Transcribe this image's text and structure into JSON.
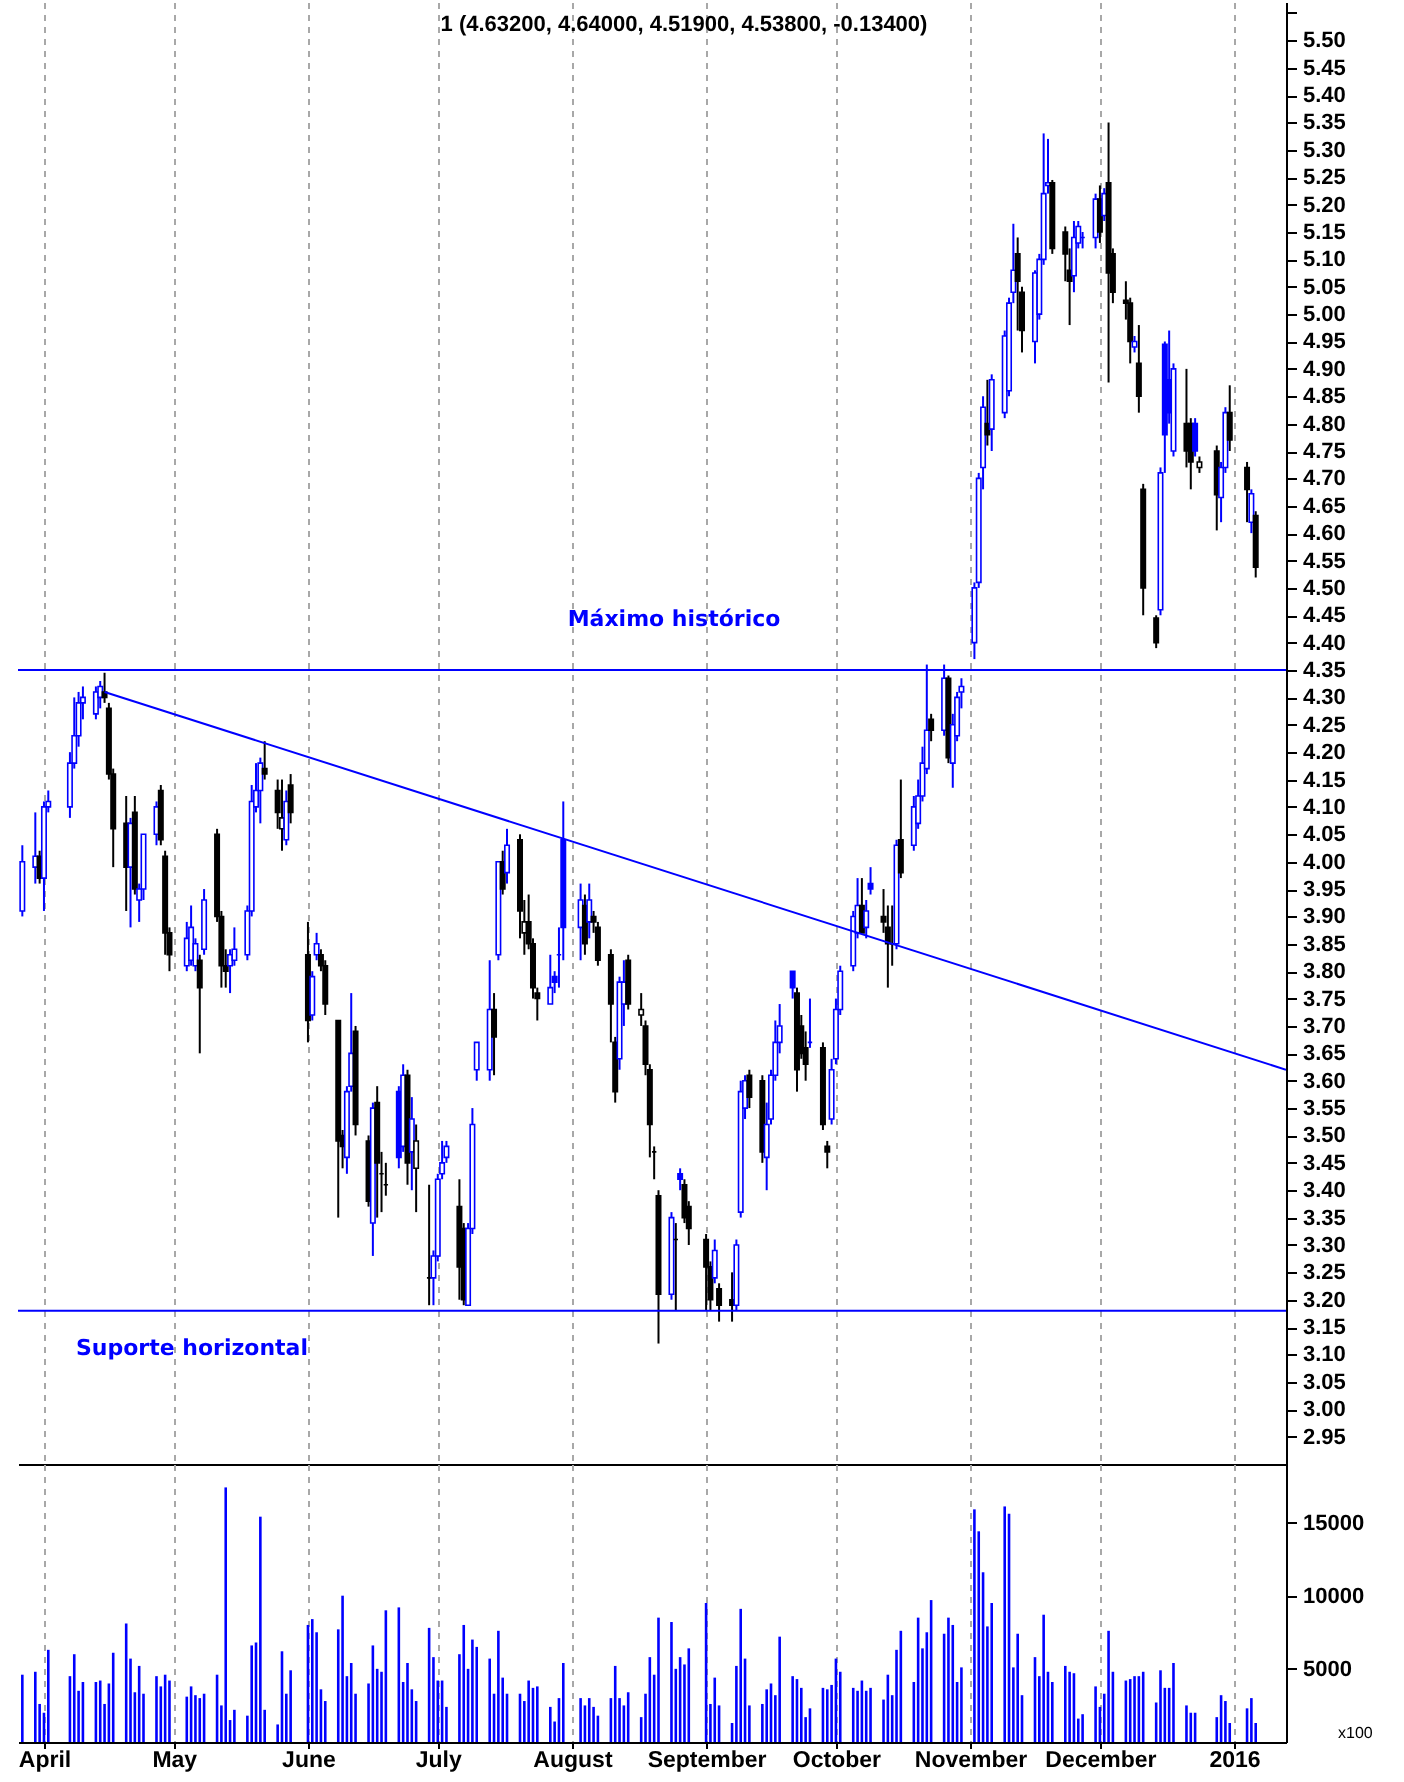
{
  "chart_data": [
    {
      "type": "candlestick",
      "title": "1 (4.63200, 4.64000, 4.51900, 4.53800, -0.13400)",
      "x": [
        "2015-03-27",
        "2015-03-30",
        "2015-03-31",
        "2015-04-01",
        "2015-04-02",
        "2015-04-07",
        "2015-04-08",
        "2015-04-09",
        "2015-04-10",
        "2015-04-13",
        "2015-04-14",
        "2015-04-15",
        "2015-04-16",
        "2015-04-17",
        "2015-04-20",
        "2015-04-21",
        "2015-04-22",
        "2015-04-23",
        "2015-04-24",
        "2015-04-27",
        "2015-04-28",
        "2015-04-29",
        "2015-04-30",
        "2015-05-04",
        "2015-05-05",
        "2015-05-06",
        "2015-05-07",
        "2015-05-08",
        "2015-05-11",
        "2015-05-12",
        "2015-05-13",
        "2015-05-14",
        "2015-05-15",
        "2015-05-18",
        "2015-05-19",
        "2015-05-20",
        "2015-05-21",
        "2015-05-22",
        "2015-05-25",
        "2015-05-26",
        "2015-05-27",
        "2015-05-28",
        "2015-06-01",
        "2015-06-02",
        "2015-06-03",
        "2015-06-04",
        "2015-06-05",
        "2015-06-08",
        "2015-06-09",
        "2015-06-10",
        "2015-06-11",
        "2015-06-12",
        "2015-06-15",
        "2015-06-16",
        "2015-06-17",
        "2015-06-18",
        "2015-06-19",
        "2015-06-22",
        "2015-06-23",
        "2015-06-24",
        "2015-06-25",
        "2015-06-26",
        "2015-06-29",
        "2015-06-30",
        "2015-07-01",
        "2015-07-02",
        "2015-07-03",
        "2015-07-06",
        "2015-07-07",
        "2015-07-08",
        "2015-07-09",
        "2015-07-10",
        "2015-07-13",
        "2015-07-14",
        "2015-07-15",
        "2015-07-16",
        "2015-07-17",
        "2015-07-20",
        "2015-07-21",
        "2015-07-22",
        "2015-07-23",
        "2015-07-24",
        "2015-07-27",
        "2015-07-28",
        "2015-07-29",
        "2015-07-30",
        "2015-08-03",
        "2015-08-04",
        "2015-08-05",
        "2015-08-06",
        "2015-08-07",
        "2015-08-10",
        "2015-08-11",
        "2015-08-12",
        "2015-08-13",
        "2015-08-14",
        "2015-08-17",
        "2015-08-18",
        "2015-08-19",
        "2015-08-20",
        "2015-08-21",
        "2015-08-24",
        "2015-08-25",
        "2015-08-26",
        "2015-08-27",
        "2015-08-28",
        "2015-09-01",
        "2015-09-02",
        "2015-09-03",
        "2015-09-04",
        "2015-09-07",
        "2015-09-08",
        "2015-09-09",
        "2015-09-10",
        "2015-09-11",
        "2015-09-14",
        "2015-09-15",
        "2015-09-16",
        "2015-09-17",
        "2015-09-18",
        "2015-09-21",
        "2015-09-22",
        "2015-09-23",
        "2015-09-24",
        "2015-09-25",
        "2015-09-28",
        "2015-09-29",
        "2015-09-30",
        "2015-10-01",
        "2015-10-02",
        "2015-10-05",
        "2015-10-06",
        "2015-10-07",
        "2015-10-08",
        "2015-10-09",
        "2015-10-12",
        "2015-10-13",
        "2015-10-14",
        "2015-10-15",
        "2015-10-16",
        "2015-10-19",
        "2015-10-20",
        "2015-10-21",
        "2015-10-22",
        "2015-10-23",
        "2015-10-26",
        "2015-10-27",
        "2015-10-28",
        "2015-10-29",
        "2015-10-30",
        "2015-11-02",
        "2015-11-03",
        "2015-11-04",
        "2015-11-05",
        "2015-11-06",
        "2015-11-09",
        "2015-11-10",
        "2015-11-11",
        "2015-11-12",
        "2015-11-13",
        "2015-11-16",
        "2015-11-17",
        "2015-11-18",
        "2015-11-19",
        "2015-11-20",
        "2015-11-23",
        "2015-11-24",
        "2015-11-25",
        "2015-11-26",
        "2015-11-27",
        "2015-11-30",
        "2015-12-01",
        "2015-12-02",
        "2015-12-03",
        "2015-12-04",
        "2015-12-07",
        "2015-12-08",
        "2015-12-09",
        "2015-12-10",
        "2015-12-11",
        "2015-12-14",
        "2015-12-15",
        "2015-12-16",
        "2015-12-17",
        "2015-12-18",
        "2015-12-21",
        "2015-12-22",
        "2015-12-23",
        "2015-12-24",
        "2015-12-28",
        "2015-12-29",
        "2015-12-30",
        "2015-12-31",
        "2016-01-04",
        "2016-01-05",
        "2016-01-06"
      ],
      "ohlc": [
        [
          3.91,
          4.03,
          3.9,
          4.0
        ],
        [
          3.99,
          4.09,
          3.96,
          4.01
        ],
        [
          4.01,
          4.02,
          3.96,
          3.97
        ],
        [
          3.97,
          4.11,
          3.91,
          4.1
        ],
        [
          4.1,
          4.13,
          4.09,
          4.11
        ],
        [
          4.1,
          4.2,
          4.08,
          4.18
        ],
        [
          4.18,
          4.3,
          4.17,
          4.23
        ],
        [
          4.23,
          4.31,
          4.21,
          4.29
        ],
        [
          4.29,
          4.32,
          4.26,
          4.3
        ],
        [
          4.27,
          4.32,
          4.26,
          4.31
        ],
        [
          4.3,
          4.33,
          4.28,
          4.32
        ],
        [
          4.31,
          4.345,
          4.29,
          4.3
        ],
        [
          4.28,
          4.29,
          4.15,
          4.16
        ],
        [
          4.16,
          4.17,
          3.99,
          4.06
        ],
        [
          4.07,
          4.12,
          3.91,
          3.99
        ],
        [
          3.99,
          4.08,
          3.88,
          4.07
        ],
        [
          4.09,
          4.12,
          3.94,
          3.95
        ],
        [
          3.93,
          3.96,
          3.89,
          3.95
        ],
        [
          3.95,
          4.05,
          3.93,
          4.05
        ],
        [
          4.05,
          4.11,
          4.03,
          4.1
        ],
        [
          4.13,
          4.14,
          4.03,
          4.04
        ],
        [
          4.01,
          4.02,
          3.83,
          3.87
        ],
        [
          3.87,
          3.88,
          3.8,
          3.83
        ],
        [
          3.81,
          3.89,
          3.8,
          3.86
        ],
        [
          3.82,
          3.92,
          3.81,
          3.88
        ],
        [
          3.81,
          3.86,
          3.8,
          3.85
        ],
        [
          3.82,
          3.83,
          3.65,
          3.77
        ],
        [
          3.84,
          3.95,
          3.83,
          3.93
        ],
        [
          4.05,
          4.06,
          3.89,
          3.9
        ],
        [
          3.9,
          3.91,
          3.77,
          3.81
        ],
        [
          3.81,
          3.84,
          3.77,
          3.8
        ],
        [
          3.81,
          3.84,
          3.76,
          3.83
        ],
        [
          3.82,
          3.88,
          3.81,
          3.84
        ],
        [
          3.83,
          3.92,
          3.82,
          3.91
        ],
        [
          3.91,
          4.14,
          3.9,
          4.11
        ],
        [
          4.1,
          4.18,
          4.09,
          4.13
        ],
        [
          4.13,
          4.19,
          4.07,
          4.18
        ],
        [
          4.17,
          4.22,
          4.15,
          4.16
        ],
        [
          4.13,
          4.15,
          4.06,
          4.09
        ],
        [
          4.06,
          4.15,
          4.02,
          4.08
        ],
        [
          4.04,
          4.13,
          4.03,
          4.11
        ],
        [
          4.14,
          4.16,
          4.07,
          4.09
        ],
        [
          3.83,
          3.89,
          3.67,
          3.71
        ],
        [
          3.72,
          3.8,
          3.71,
          3.79
        ],
        [
          3.83,
          3.87,
          3.82,
          3.85
        ],
        [
          3.83,
          3.84,
          3.8,
          3.81
        ],
        [
          3.81,
          3.82,
          3.72,
          3.74
        ],
        [
          3.71,
          3.71,
          3.35,
          3.49
        ],
        [
          3.5,
          3.51,
          3.44,
          3.48
        ],
        [
          3.46,
          3.59,
          3.43,
          3.58
        ],
        [
          3.59,
          3.76,
          3.58,
          3.65
        ],
        [
          3.69,
          3.7,
          3.5,
          3.52
        ],
        [
          3.49,
          3.5,
          3.37,
          3.38
        ],
        [
          3.34,
          3.56,
          3.28,
          3.55
        ],
        [
          3.56,
          3.59,
          3.35,
          3.45
        ],
        [
          3.43,
          3.47,
          3.36,
          3.43
        ],
        [
          3.41,
          3.45,
          3.39,
          3.41
        ],
        [
          3.58,
          3.59,
          3.44,
          3.46
        ],
        [
          3.48,
          3.63,
          3.47,
          3.61
        ],
        [
          3.61,
          3.62,
          3.41,
          3.45
        ],
        [
          3.47,
          3.57,
          3.4,
          3.53
        ],
        [
          3.44,
          3.52,
          3.36,
          3.49
        ],
        [
          3.24,
          3.41,
          3.19,
          3.24
        ],
        [
          3.24,
          3.29,
          3.19,
          3.28
        ],
        [
          3.28,
          3.43,
          3.27,
          3.42
        ],
        [
          3.43,
          3.49,
          3.42,
          3.45
        ],
        [
          3.46,
          3.49,
          3.45,
          3.48
        ],
        [
          3.37,
          3.42,
          3.2,
          3.26
        ],
        [
          3.33,
          3.34,
          3.19,
          3.2
        ],
        [
          3.19,
          3.34,
          3.19,
          3.33
        ],
        [
          3.33,
          3.55,
          3.32,
          3.52
        ],
        [
          3.62,
          3.67,
          3.6,
          3.67
        ],
        [
          3.62,
          3.82,
          3.6,
          3.73
        ],
        [
          3.73,
          3.76,
          3.61,
          3.68
        ],
        [
          3.83,
          4.0,
          3.82,
          4.0
        ],
        [
          4.0,
          4.02,
          3.94,
          3.95
        ],
        [
          3.98,
          4.06,
          3.96,
          4.03
        ],
        [
          4.04,
          4.05,
          3.86,
          3.91
        ],
        [
          3.87,
          3.93,
          3.83,
          3.89
        ],
        [
          3.89,
          3.94,
          3.84,
          3.85
        ],
        [
          3.85,
          3.86,
          3.75,
          3.77
        ],
        [
          3.76,
          3.77,
          3.71,
          3.75
        ],
        [
          3.74,
          3.83,
          3.74,
          3.77
        ],
        [
          3.79,
          3.8,
          3.76,
          3.78
        ],
        [
          3.83,
          3.88,
          3.77,
          3.83
        ],
        [
          4.04,
          4.11,
          3.82,
          3.88
        ],
        [
          3.88,
          3.96,
          3.82,
          3.93
        ],
        [
          3.92,
          3.94,
          3.83,
          3.85
        ],
        [
          3.89,
          3.96,
          3.86,
          3.93
        ],
        [
          3.9,
          3.91,
          3.87,
          3.89
        ],
        [
          3.88,
          3.89,
          3.81,
          3.82
        ],
        [
          3.83,
          3.84,
          3.67,
          3.74
        ],
        [
          3.67,
          3.68,
          3.56,
          3.58
        ],
        [
          3.64,
          3.79,
          3.62,
          3.78
        ],
        [
          3.74,
          3.82,
          3.7,
          3.78
        ],
        [
          3.82,
          3.83,
          3.73,
          3.74
        ],
        [
          3.72,
          3.76,
          3.7,
          3.73
        ],
        [
          3.7,
          3.71,
          3.61,
          3.63
        ],
        [
          3.62,
          3.63,
          3.46,
          3.52
        ],
        [
          3.47,
          3.48,
          3.42,
          3.47
        ],
        [
          3.39,
          3.4,
          3.12,
          3.21
        ],
        [
          3.21,
          3.36,
          3.2,
          3.35
        ],
        [
          3.31,
          3.34,
          3.18,
          3.31
        ],
        [
          3.43,
          3.44,
          3.4,
          3.42
        ],
        [
          3.41,
          3.42,
          3.34,
          3.35
        ],
        [
          3.37,
          3.38,
          3.3,
          3.33
        ],
        [
          3.31,
          3.32,
          3.18,
          3.26
        ],
        [
          3.26,
          3.27,
          3.18,
          3.2
        ],
        [
          3.24,
          3.31,
          3.23,
          3.29
        ],
        [
          3.22,
          3.23,
          3.16,
          3.19
        ],
        [
          3.2,
          3.25,
          3.16,
          3.19
        ],
        [
          3.19,
          3.31,
          3.18,
          3.3
        ],
        [
          3.36,
          3.6,
          3.35,
          3.58
        ],
        [
          3.55,
          3.61,
          3.53,
          3.6
        ],
        [
          3.61,
          3.62,
          3.55,
          3.57
        ],
        [
          3.6,
          3.61,
          3.45,
          3.47
        ],
        [
          3.46,
          3.56,
          3.4,
          3.52
        ],
        [
          3.53,
          3.62,
          3.52,
          3.61
        ],
        [
          3.61,
          3.71,
          3.6,
          3.67
        ],
        [
          3.67,
          3.74,
          3.65,
          3.7
        ],
        [
          3.8,
          3.8,
          3.75,
          3.77
        ],
        [
          3.76,
          3.77,
          3.58,
          3.62
        ],
        [
          3.7,
          3.72,
          3.64,
          3.65
        ],
        [
          3.66,
          3.69,
          3.6,
          3.63
        ],
        [
          3.67,
          3.75,
          3.66,
          3.67
        ],
        [
          3.66,
          3.67,
          3.51,
          3.52
        ],
        [
          3.48,
          3.49,
          3.44,
          3.47
        ],
        [
          3.53,
          3.64,
          3.52,
          3.62
        ],
        [
          3.64,
          3.75,
          3.63,
          3.73
        ],
        [
          3.73,
          3.81,
          3.72,
          3.8
        ],
        [
          3.81,
          3.91,
          3.8,
          3.9
        ],
        [
          3.87,
          3.97,
          3.86,
          3.92
        ],
        [
          3.92,
          3.97,
          3.87,
          3.87
        ],
        [
          3.88,
          3.93,
          3.86,
          3.91
        ],
        [
          3.96,
          3.99,
          3.94,
          3.95
        ],
        [
          3.9,
          3.95,
          3.87,
          3.89
        ],
        [
          3.88,
          3.92,
          3.77,
          3.85
        ],
        [
          3.85,
          3.92,
          3.81,
          3.85
        ],
        [
          3.85,
          4.04,
          3.84,
          4.03
        ],
        [
          4.04,
          4.15,
          3.97,
          3.98
        ],
        [
          4.03,
          4.12,
          4.02,
          4.1
        ],
        [
          4.07,
          4.15,
          4.06,
          4.12
        ],
        [
          4.12,
          4.21,
          4.11,
          4.18
        ],
        [
          4.17,
          4.36,
          4.16,
          4.24
        ],
        [
          4.26,
          4.27,
          4.22,
          4.24
        ],
        [
          4.24,
          4.36,
          4.23,
          4.335
        ],
        [
          4.335,
          4.34,
          4.18,
          4.19
        ],
        [
          4.18,
          4.27,
          4.135,
          4.25
        ],
        [
          4.23,
          4.31,
          4.22,
          4.3
        ],
        [
          4.31,
          4.335,
          4.28,
          4.32
        ],
        [
          4.4,
          4.51,
          4.37,
          4.5
        ],
        [
          4.51,
          4.71,
          4.5,
          4.7
        ],
        [
          4.72,
          4.85,
          4.68,
          4.83
        ],
        [
          4.8,
          4.88,
          4.76,
          4.78
        ],
        [
          4.79,
          4.89,
          4.75,
          4.88
        ],
        [
          4.82,
          4.97,
          4.81,
          4.96
        ],
        [
          4.86,
          5.03,
          4.85,
          5.02
        ],
        [
          5.04,
          5.165,
          5.02,
          5.08
        ],
        [
          5.11,
          5.14,
          4.97,
          5.06
        ],
        [
          5.04,
          5.05,
          4.93,
          4.97
        ],
        [
          4.95,
          5.08,
          4.91,
          5.075
        ],
        [
          5.0,
          5.11,
          4.99,
          5.1
        ],
        [
          5.1,
          5.33,
          5.09,
          5.22
        ],
        [
          5.235,
          5.32,
          5.22,
          5.24
        ],
        [
          5.24,
          5.245,
          5.11,
          5.12
        ],
        [
          5.15,
          5.16,
          5.06,
          5.11
        ],
        [
          5.08,
          5.12,
          4.98,
          5.06
        ],
        [
          5.07,
          5.17,
          5.04,
          5.14
        ],
        [
          5.13,
          5.17,
          5.12,
          5.16
        ],
        [
          5.14,
          5.15,
          5.12,
          5.14
        ],
        [
          5.14,
          5.22,
          5.12,
          5.21
        ],
        [
          5.21,
          5.235,
          5.13,
          5.15
        ],
        [
          5.18,
          5.23,
          5.17,
          5.22
        ],
        [
          5.24,
          5.35,
          4.875,
          5.075
        ],
        [
          5.11,
          5.12,
          5.02,
          5.04
        ],
        [
          5.025,
          5.06,
          4.99,
          5.02
        ],
        [
          5.02,
          5.03,
          4.91,
          4.95
        ],
        [
          4.94,
          4.96,
          4.93,
          4.95
        ],
        [
          4.91,
          4.98,
          4.82,
          4.85
        ],
        [
          4.68,
          4.69,
          4.45,
          4.5
        ],
        [
          4.445,
          4.45,
          4.39,
          4.4
        ],
        [
          4.46,
          4.72,
          4.45,
          4.71
        ],
        [
          4.945,
          4.95,
          4.71,
          4.78
        ],
        [
          4.88,
          4.97,
          4.8,
          4.82
        ],
        [
          4.75,
          4.91,
          4.74,
          4.9
        ],
        [
          4.8,
          4.9,
          4.72,
          4.75
        ],
        [
          4.8,
          4.81,
          4.68,
          4.73
        ],
        [
          4.8,
          4.81,
          4.74,
          4.75
        ],
        [
          4.72,
          4.74,
          4.71,
          4.73
        ],
        [
          4.75,
          4.76,
          4.605,
          4.67
        ],
        [
          4.665,
          4.73,
          4.62,
          4.72
        ],
        [
          4.72,
          4.83,
          4.71,
          4.82
        ],
        [
          4.82,
          4.87,
          4.75,
          4.77
        ],
        [
          4.72,
          4.73,
          4.62,
          4.68
        ],
        [
          4.62,
          4.68,
          4.6,
          4.672
        ],
        [
          4.632,
          4.64,
          4.519,
          4.538
        ]
      ],
      "colors": [
        "#0000ff",
        "#0000ff",
        "#000000",
        "#0000ff",
        "#0000ff",
        "#0000ff",
        "#0000ff",
        "#0000ff",
        "#0000ff",
        "#0000ff",
        "#0000ff",
        "#000000",
        "#000000",
        "#000000",
        "#000000",
        "#0000ff",
        "#000000",
        "#0000ff",
        "#0000ff",
        "#0000ff",
        "#000000",
        "#000000",
        "#000000",
        "#0000ff",
        "#0000ff",
        "#0000ff",
        "#000000",
        "#0000ff",
        "#000000",
        "#000000",
        "#000000",
        "#0000ff",
        "#0000ff",
        "#0000ff",
        "#0000ff",
        "#0000ff",
        "#0000ff",
        "#000000",
        "#000000",
        "#000000",
        "#0000ff",
        "#000000",
        "#000000",
        "#0000ff",
        "#0000ff",
        "#000000",
        "#000000",
        "#000000",
        "#000000",
        "#0000ff",
        "#0000ff",
        "#000000",
        "#000000",
        "#0000ff",
        "#000000",
        "#000000",
        "#000000",
        "#0000ff",
        "#0000ff",
        "#000000",
        "#0000ff",
        "#000000",
        "#000000",
        "#0000ff",
        "#0000ff",
        "#0000ff",
        "#0000ff",
        "#000000",
        "#000000",
        "#0000ff",
        "#0000ff",
        "#0000ff",
        "#0000ff",
        "#000000",
        "#0000ff",
        "#000000",
        "#0000ff",
        "#000000",
        "#000000",
        "#000000",
        "#000000",
        "#000000",
        "#0000ff",
        "#0000ff",
        "#0000ff",
        "#0000ff",
        "#0000ff",
        "#000000",
        "#0000ff",
        "#000000",
        "#000000",
        "#000000",
        "#000000",
        "#0000ff",
        "#0000ff",
        "#000000",
        "#000000",
        "#000000",
        "#000000",
        "#000000",
        "#000000",
        "#0000ff",
        "#000000",
        "#0000ff",
        "#000000",
        "#000000",
        "#000000",
        "#000000",
        "#0000ff",
        "#000000",
        "#000000",
        "#0000ff",
        "#0000ff",
        "#0000ff",
        "#000000",
        "#000000",
        "#0000ff",
        "#0000ff",
        "#0000ff",
        "#0000ff",
        "#0000ff",
        "#000000",
        "#000000",
        "#000000",
        "#0000ff",
        "#000000",
        "#000000",
        "#0000ff",
        "#0000ff",
        "#0000ff",
        "#0000ff",
        "#0000ff",
        "#000000",
        "#0000ff",
        "#0000ff",
        "#000000",
        "#000000",
        "#000000",
        "#0000ff",
        "#000000",
        "#0000ff",
        "#0000ff",
        "#0000ff",
        "#0000ff",
        "#000000",
        "#0000ff",
        "#000000",
        "#0000ff",
        "#0000ff",
        "#0000ff",
        "#0000ff",
        "#0000ff",
        "#0000ff",
        "#000000",
        "#0000ff",
        "#0000ff",
        "#0000ff",
        "#0000ff",
        "#000000",
        "#000000",
        "#0000ff",
        "#0000ff",
        "#0000ff",
        "#0000ff",
        "#000000",
        "#000000",
        "#000000",
        "#0000ff",
        "#0000ff",
        "#0000ff",
        "#0000ff",
        "#000000",
        "#0000ff",
        "#000000",
        "#000000",
        "#000000",
        "#000000",
        "#0000ff",
        "#000000",
        "#000000",
        "#000000",
        "#0000ff",
        "#0000ff",
        "#0000ff",
        "#0000ff",
        "#000000",
        "#000000",
        "#0000ff",
        "#000000",
        "#000000",
        "#0000ff",
        "#0000ff",
        "#000000",
        "#000000",
        "#0000ff",
        "#000000"
      ],
      "series": [
        {
          "type": "line",
          "x": [
            "2015-04-15",
            "2016-01-13"
          ],
          "values": [
            4.31,
            3.62
          ],
          "color": "#0000ff"
        }
      ],
      "ref_lines": [
        {
          "axis": "y",
          "value": 4.35,
          "label": "Máximo histórico",
          "color": "#0000ff"
        },
        {
          "axis": "y",
          "value": 3.18,
          "label": "Suporte horizontal",
          "color": "#0000ff"
        }
      ],
      "xlim": [
        "2015-03-26",
        "2016-01-13"
      ],
      "xticks": [
        {
          "value": "2015-04-01",
          "label": null
        },
        {
          "value": "2015-05-01",
          "label": null
        },
        {
          "value": "2015-06-01",
          "label": null
        },
        {
          "value": "2015-07-01",
          "label": null
        },
        {
          "value": "2015-08-01",
          "label": null
        },
        {
          "value": "2015-09-01",
          "label": null
        },
        {
          "value": "2015-10-01",
          "label": null
        },
        {
          "value": "2015-11-01",
          "label": null
        },
        {
          "value": "2015-12-01",
          "label": null
        },
        {
          "value": "2016-01-01",
          "label": null
        }
      ],
      "ylim": [
        2.9,
        5.57
      ],
      "yticks": [
        2.95,
        {
          "value": 3.0,
          "label": "3.00"
        },
        3.05,
        {
          "value": 3.1,
          "label": "3.10"
        },
        3.15,
        {
          "value": 3.2,
          "label": "3.20"
        },
        3.25,
        {
          "value": 3.3,
          "label": "3.30"
        },
        3.35,
        {
          "value": 3.4,
          "label": "3.40"
        },
        3.45,
        {
          "value": 3.5,
          "label": "3.50"
        },
        3.55,
        {
          "value": 3.6,
          "label": "3.60"
        },
        3.65,
        {
          "value": 3.7,
          "label": "3.70"
        },
        3.75,
        {
          "value": 3.8,
          "label": "3.80"
        },
        3.85,
        {
          "value": 3.9,
          "label": "3.90"
        },
        3.95,
        {
          "value": 4.0,
          "label": "4.00"
        },
        4.05,
        {
          "value": 4.1,
          "label": "4.10"
        },
        4.15,
        {
          "value": 4.2,
          "label": "4.20"
        },
        4.25,
        {
          "value": 4.3,
          "label": "4.30"
        },
        4.35,
        {
          "value": 4.4,
          "label": "4.40"
        },
        4.45,
        {
          "value": 4.5,
          "label": "4.50"
        },
        4.55,
        {
          "value": 4.6,
          "label": "4.60"
        },
        4.65,
        {
          "value": 4.7,
          "label": "4.70"
        },
        4.75,
        {
          "value": 4.8,
          "label": "4.80"
        },
        4.85,
        {
          "value": 4.9,
          "label": "4.90"
        },
        4.95,
        {
          "value": 5.0,
          "label": "5.00"
        },
        5.05,
        {
          "value": 5.1,
          "label": "5.10"
        },
        5.15,
        {
          "value": 5.2,
          "label": "5.20"
        },
        5.25,
        {
          "value": 5.3,
          "label": "5.30"
        },
        5.35,
        {
          "value": 5.4,
          "label": "5.40"
        },
        5.45,
        {
          "value": 5.5,
          "label": "5.50"
        },
        {
          "value": 5.55,
          "label": null
        }
      ],
      "tick_labels": "y",
      "grid": "x"
    },
    {
      "type": "bar",
      "x": [
        "2015-03-27",
        "2015-03-30",
        "2015-03-31",
        "2015-04-01",
        "2015-04-02",
        "2015-04-07",
        "2015-04-08",
        "2015-04-09",
        "2015-04-10",
        "2015-04-13",
        "2015-04-14",
        "2015-04-15",
        "2015-04-16",
        "2015-04-17",
        "2015-04-20",
        "2015-04-21",
        "2015-04-22",
        "2015-04-23",
        "2015-04-24",
        "2015-04-27",
        "2015-04-28",
        "2015-04-29",
        "2015-04-30",
        "2015-05-04",
        "2015-05-05",
        "2015-05-06",
        "2015-05-07",
        "2015-05-08",
        "2015-05-11",
        "2015-05-12",
        "2015-05-13",
        "2015-05-14",
        "2015-05-15",
        "2015-05-18",
        "2015-05-19",
        "2015-05-20",
        "2015-05-21",
        "2015-05-22",
        "2015-05-25",
        "2015-05-26",
        "2015-05-27",
        "2015-05-28",
        "2015-06-01",
        "2015-06-02",
        "2015-06-03",
        "2015-06-04",
        "2015-06-05",
        "2015-06-08",
        "2015-06-09",
        "2015-06-10",
        "2015-06-11",
        "2015-06-12",
        "2015-06-15",
        "2015-06-16",
        "2015-06-17",
        "2015-06-18",
        "2015-06-19",
        "2015-06-22",
        "2015-06-23",
        "2015-06-24",
        "2015-06-25",
        "2015-06-26",
        "2015-06-29",
        "2015-06-30",
        "2015-07-01",
        "2015-07-02",
        "2015-07-03",
        "2015-07-06",
        "2015-07-07",
        "2015-07-08",
        "2015-07-09",
        "2015-07-10",
        "2015-07-13",
        "2015-07-14",
        "2015-07-15",
        "2015-07-16",
        "2015-07-17",
        "2015-07-20",
        "2015-07-21",
        "2015-07-22",
        "2015-07-23",
        "2015-07-24",
        "2015-07-27",
        "2015-07-28",
        "2015-07-29",
        "2015-07-30",
        "2015-08-03",
        "2015-08-04",
        "2015-08-05",
        "2015-08-06",
        "2015-08-07",
        "2015-08-10",
        "2015-08-11",
        "2015-08-12",
        "2015-08-13",
        "2015-08-14",
        "2015-08-17",
        "2015-08-18",
        "2015-08-19",
        "2015-08-20",
        "2015-08-21",
        "2015-08-24",
        "2015-08-25",
        "2015-08-26",
        "2015-08-27",
        "2015-08-28",
        "2015-09-01",
        "2015-09-02",
        "2015-09-03",
        "2015-09-04",
        "2015-09-07",
        "2015-09-08",
        "2015-09-09",
        "2015-09-10",
        "2015-09-11",
        "2015-09-14",
        "2015-09-15",
        "2015-09-16",
        "2015-09-17",
        "2015-09-18",
        "2015-09-21",
        "2015-09-22",
        "2015-09-23",
        "2015-09-24",
        "2015-09-25",
        "2015-09-28",
        "2015-09-29",
        "2015-09-30",
        "2015-10-01",
        "2015-10-02",
        "2015-10-05",
        "2015-10-06",
        "2015-10-07",
        "2015-10-08",
        "2015-10-09",
        "2015-10-12",
        "2015-10-13",
        "2015-10-14",
        "2015-10-15",
        "2015-10-16",
        "2015-10-19",
        "2015-10-20",
        "2015-10-21",
        "2015-10-22",
        "2015-10-23",
        "2015-10-26",
        "2015-10-27",
        "2015-10-28",
        "2015-10-29",
        "2015-10-30",
        "2015-11-02",
        "2015-11-03",
        "2015-11-04",
        "2015-11-05",
        "2015-11-06",
        "2015-11-09",
        "2015-11-10",
        "2015-11-11",
        "2015-11-12",
        "2015-11-13",
        "2015-11-16",
        "2015-11-17",
        "2015-11-18",
        "2015-11-19",
        "2015-11-20",
        "2015-11-23",
        "2015-11-24",
        "2015-11-25",
        "2015-11-26",
        "2015-11-27",
        "2015-11-30",
        "2015-12-01",
        "2015-12-02",
        "2015-12-03",
        "2015-12-04",
        "2015-12-07",
        "2015-12-08",
        "2015-12-09",
        "2015-12-10",
        "2015-12-11",
        "2015-12-14",
        "2015-12-15",
        "2015-12-16",
        "2015-12-17",
        "2015-12-18",
        "2015-12-21",
        "2015-12-22",
        "2015-12-23",
        "2015-12-24",
        "2015-12-28",
        "2015-12-29",
        "2015-12-30",
        "2015-12-31",
        "2016-01-04",
        "2016-01-05",
        "2016-01-06"
      ],
      "values": [
        4600,
        4800,
        2600,
        2000,
        6300,
        4500,
        6000,
        3500,
        4100,
        4100,
        4200,
        2600,
        4000,
        6100,
        8100,
        5700,
        3400,
        5200,
        3300,
        4500,
        3800,
        4600,
        4200,
        3100,
        3800,
        3200,
        3000,
        3300,
        4600,
        2500,
        17400,
        1500,
        2200,
        1800,
        6600,
        6800,
        15400,
        2200,
        1200,
        6200,
        3300,
        4900,
        8000,
        8400,
        7500,
        3600,
        2800,
        7700,
        10000,
        4500,
        5400,
        3300,
        4000,
        6600,
        5000,
        4800,
        9000,
        9200,
        4100,
        5400,
        3600,
        2800,
        7800,
        5800,
        4200,
        4200,
        2400,
        6000,
        8000,
        5000,
        7000,
        6500,
        5700,
        3300,
        7600,
        4400,
        3300,
        3300,
        2800,
        4200,
        3700,
        3800,
        2400,
        1400,
        3000,
        5400,
        3000,
        2500,
        3000,
        2400,
        1800,
        3000,
        5200,
        3000,
        2500,
        3400,
        1700,
        3300,
        5800,
        4600,
        8500,
        8200,
        5000,
        5800,
        5300,
        6400,
        9500,
        2600,
        4400,
        2500,
        1300,
        5200,
        9100,
        5700,
        2500,
        2600,
        3600,
        4000,
        3200,
        7200,
        4500,
        4300,
        3700,
        1700,
        2300,
        3700,
        3600,
        3900,
        5700,
        4800,
        3700,
        3500,
        4200,
        3500,
        3700,
        2900,
        4600,
        3200,
        6300,
        7600,
        4100,
        8500,
        6400,
        7500,
        9700,
        7400,
        8500,
        8000,
        4100,
        5100,
        15900,
        14400,
        11600,
        7900,
        9500,
        16100,
        15600,
        5100,
        7400,
        3200,
        5800,
        4500,
        8700,
        4800,
        4100,
        5200,
        4800,
        4700,
        1600,
        1900,
        3800,
        2400,
        3300,
        7600,
        4800,
        4200,
        4300,
        4500,
        4500,
        4800,
        2700,
        4900,
        3700,
        3700,
        5400,
        2500,
        2000,
        2000,
        null,
        1700,
        3200,
        2800,
        1300,
        2300,
        3000,
        1300
      ],
      "color": "#0000ff",
      "xlim": [
        "2015-03-26",
        "2016-01-13"
      ],
      "xticks": [
        {
          "value": "2015-04-01",
          "label": "April"
        },
        {
          "value": "2015-05-01",
          "label": "May"
        },
        {
          "value": "2015-06-01",
          "label": "June"
        },
        {
          "value": "2015-07-01",
          "label": "July"
        },
        {
          "value": "2015-08-01",
          "label": "August"
        },
        {
          "value": "2015-09-01",
          "label": "September"
        },
        {
          "value": "2015-10-01",
          "label": "October"
        },
        {
          "value": "2015-11-01",
          "label": "November"
        },
        {
          "value": "2015-12-01",
          "label": "December"
        },
        {
          "value": "2016-01-01",
          "label": "2016"
        }
      ],
      "ylim": [
        0,
        19000
      ],
      "yticks": [
        5000,
        10000,
        15000
      ],
      "grid": "x",
      "annotations": [
        "x100"
      ]
    }
  ]
}
